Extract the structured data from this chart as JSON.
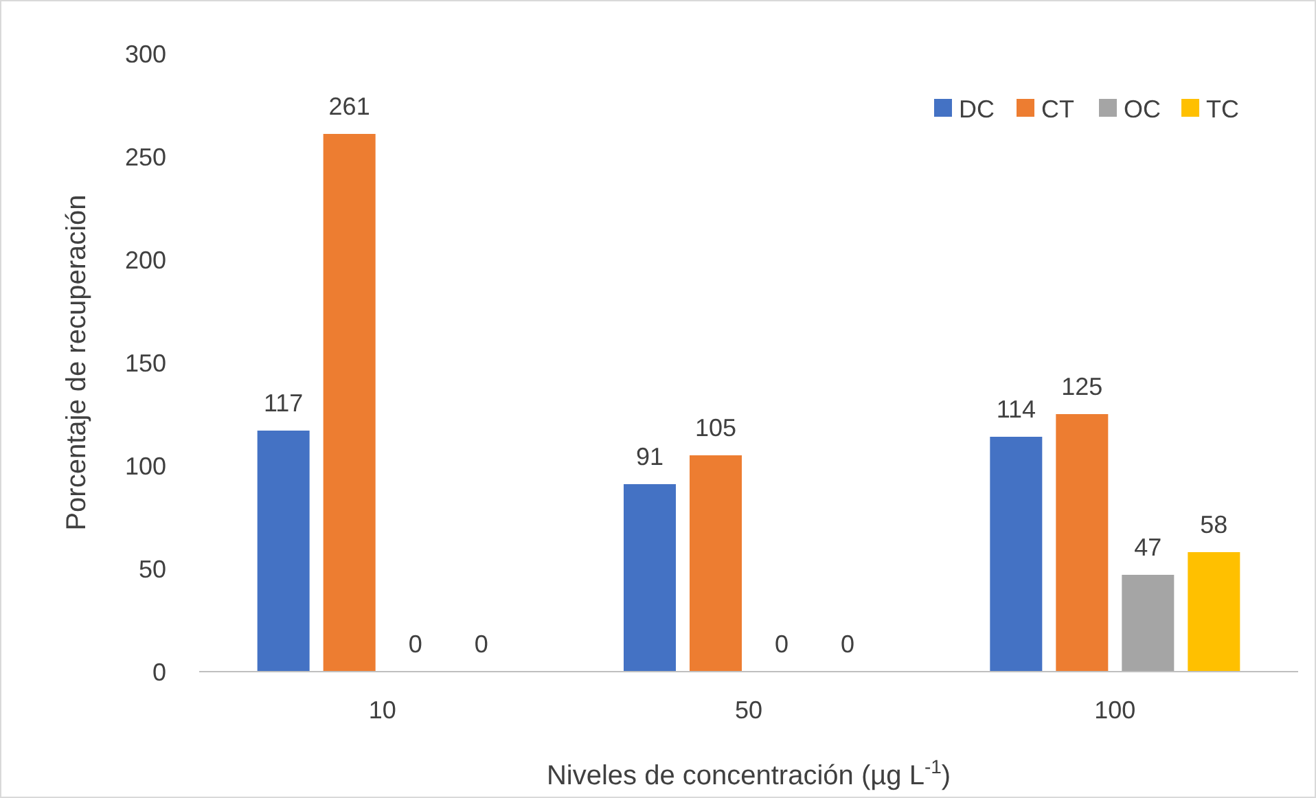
{
  "chart_data": {
    "type": "bar",
    "xlabel": "Niveles de concentración (µg L$^{-1}$)",
    "ylabel": "Porcentaje  de recuperación",
    "categories": [
      "10",
      "50",
      "100"
    ],
    "series": [
      {
        "name": "DC",
        "color": "#4472c4",
        "values": [
          117,
          91,
          114
        ]
      },
      {
        "name": "CT",
        "color": "#ed7d31",
        "values": [
          261,
          105,
          125
        ]
      },
      {
        "name": "OC",
        "color": "#a5a5a5",
        "values": [
          0,
          0,
          47
        ]
      },
      {
        "name": "TC",
        "color": "#ffc000",
        "values": [
          0,
          0,
          58
        ]
      }
    ],
    "ylim": [
      0,
      300
    ],
    "yticks": [
      0,
      50,
      100,
      150,
      200,
      250,
      300
    ],
    "grid": false,
    "legend": "top right",
    "data_labels": true
  }
}
